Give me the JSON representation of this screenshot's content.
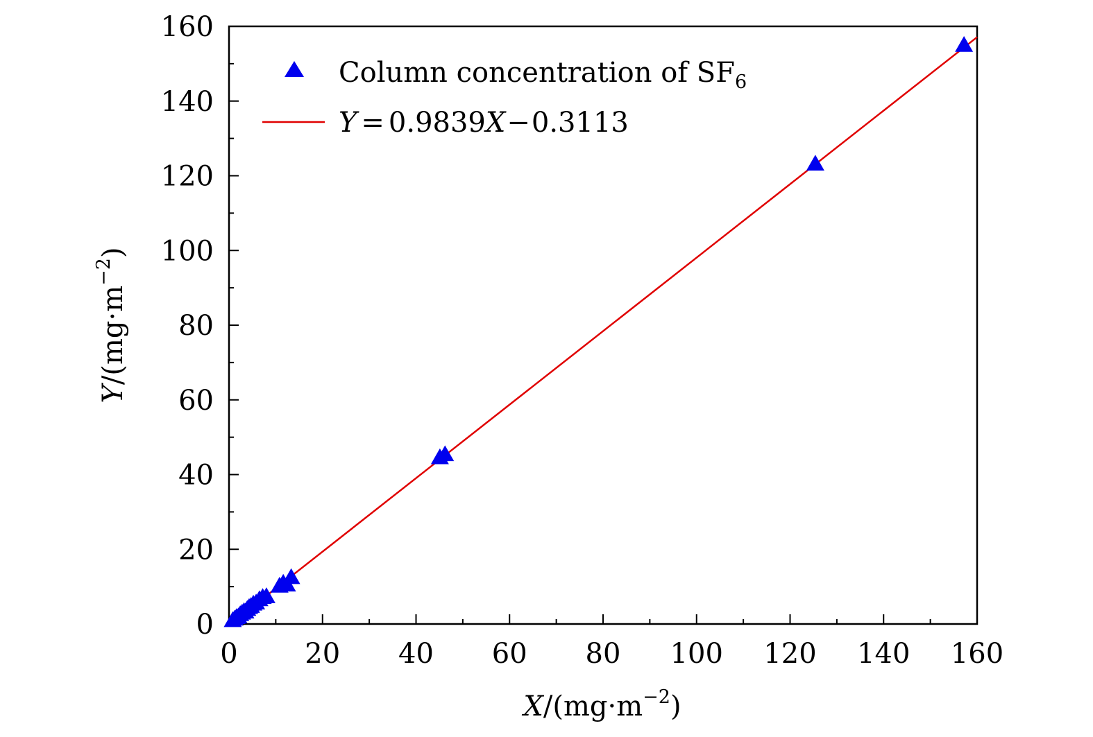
{
  "chart_data": {
    "type": "scatter",
    "title": "",
    "xlabel": {
      "var": "X",
      "unit_prefix": "/(mg·m",
      "unit_exponent": "−2",
      "unit_suffix": ")"
    },
    "ylabel": {
      "var": "Y",
      "unit_prefix": "/(mg·m",
      "unit_exponent": "−2",
      "unit_suffix": ")"
    },
    "xlim": [
      0,
      160
    ],
    "ylim": [
      0,
      160
    ],
    "x_major_ticks": [
      0,
      20,
      40,
      60,
      80,
      100,
      120,
      140,
      160
    ],
    "x_minor_ticks": [
      10,
      30,
      50,
      70,
      90,
      110,
      130,
      150
    ],
    "y_major_ticks": [
      0,
      20,
      40,
      60,
      80,
      100,
      120,
      140,
      160
    ],
    "y_minor_ticks": [
      10,
      30,
      50,
      70,
      90,
      110,
      130,
      150
    ],
    "series": [
      {
        "name_text": "Column concentration of SF",
        "name_subscript": "6",
        "kind": "scatter",
        "marker": "triangle",
        "color": "#0000ee",
        "x": [
          0.8,
          1.2,
          1.6,
          2.0,
          2.4,
          2.8,
          3.2,
          3.5,
          3.9,
          4.3,
          4.7,
          5.2,
          5.8,
          6.5,
          7.2,
          8.0,
          10.8,
          11.6,
          12.4,
          13.3,
          45.1,
          46.2,
          125.4,
          157.2
        ],
        "y": [
          1.0,
          1.4,
          1.8,
          2.0,
          2.6,
          3.0,
          3.4,
          3.3,
          4.0,
          4.5,
          4.8,
          5.4,
          5.7,
          6.6,
          7.2,
          7.4,
          10.2,
          11.0,
          10.5,
          12.5,
          44.6,
          45.4,
          123.2,
          155.0
        ]
      },
      {
        "name_parts": {
          "var_y": "Y",
          "equals": "=",
          "coef": "0.9839",
          "var_x": "X",
          "minus": "−",
          "intercept": "0.3113"
        },
        "kind": "line",
        "color": "#e00000",
        "slope": 0.9839,
        "intercept": -0.3113,
        "x_range": [
          0,
          160
        ]
      }
    ],
    "legend_position": "top-left",
    "grid": false
  }
}
